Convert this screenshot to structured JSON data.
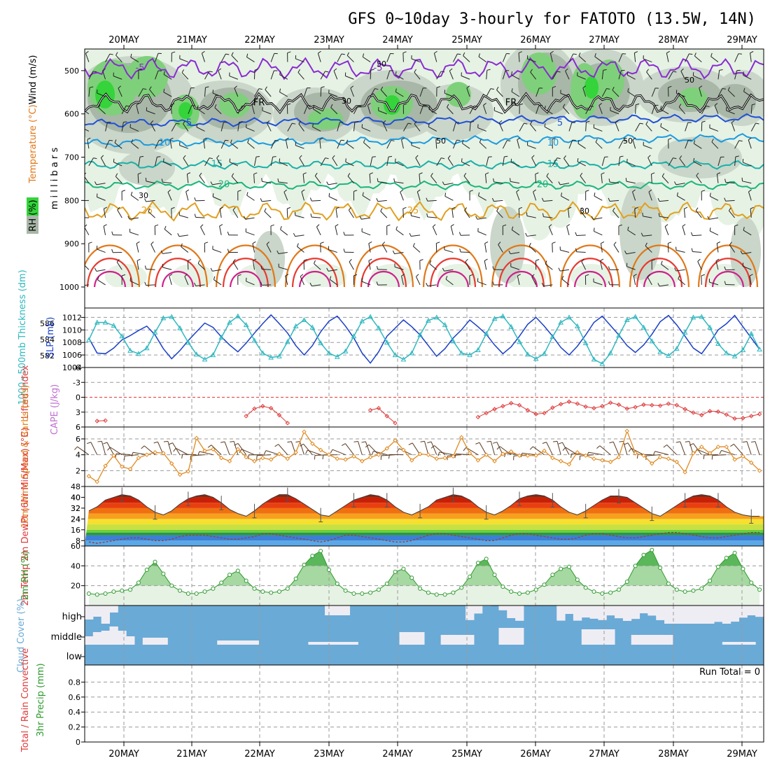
{
  "title": "GFS 0~10day 3-hourly for FATOTO (13.5W, 14N)",
  "days": [
    "20MAY",
    "21MAY",
    "22MAY",
    "23MAY",
    "24MAY",
    "25MAY",
    "26MAY",
    "27MAY",
    "28MAY",
    "29MAY"
  ],
  "run_total_label": "Run Total = 0",
  "colors": {
    "rh_light": "#e6f2e4",
    "rh_mid": "#c9d6c9",
    "rh_dark": "#a8b7a8",
    "rh_green": "#7fd07a",
    "rh_bright": "#34d43a",
    "temp_m5": "#8a2bd1",
    "temp_fr": "#000000",
    "temp_5": "#2050d8",
    "temp_10": "#1a9be0",
    "temp_15": "#1ab0a8",
    "temp_20": "#19b57c",
    "temp_25": "#e0a020",
    "temp_30": "#e07818",
    "temp_35": "#e83a30",
    "temp_40": "#d0208a",
    "slp": "#1a3fc8",
    "thickness": "#30b8c0",
    "li": "#e03a3a",
    "wind": "#e08a20",
    "rh2m": "#2e9a2e",
    "cloud_blue": "#6aaad6",
    "cloud_white": "#efedf4"
  },
  "chart_data": [
    {
      "type": "contour",
      "panel": "upper-air",
      "ylabel": "m i l l i b a r s",
      "legend_labels": [
        "RH (%)",
        "Temperature (°C)",
        "Wind (m/s)"
      ],
      "ylim": [
        1000,
        450
      ],
      "yticks": [
        500,
        600,
        700,
        800,
        900,
        1000
      ],
      "isotherm_labels": [
        "-5",
        "FR",
        "5",
        "10",
        "15",
        "20",
        "25"
      ],
      "rh_labels": [
        "30",
        "50"
      ],
      "isotherms_hpa": [
        {
          "label": "-5",
          "level": 495
        },
        {
          "label": "FR",
          "level": 575
        },
        {
          "label": "5",
          "level": 622
        },
        {
          "label": "10",
          "level": 668
        },
        {
          "label": "15",
          "level": 718
        },
        {
          "label": "20",
          "level": 765
        },
        {
          "label": "25",
          "level": 825
        }
      ]
    },
    {
      "type": "line",
      "panel": "slp-thickness",
      "y1label": "1000~500mb Thickness (dm)",
      "y2label": "SLP (mb)",
      "y1ticks": [
        582,
        584,
        586
      ],
      "y2ticks": [
        1004,
        1006,
        1008,
        1010,
        1012
      ],
      "y2lim": [
        1004,
        1013.5
      ],
      "series": [
        {
          "name": "SLP",
          "axis": "right",
          "values": [
            1008.7,
            1006.3,
            1006.2,
            1007.1,
            1008.4,
            1009.1,
            1009.9,
            1010.6,
            1009.2,
            1007.0,
            1005.4,
            1006.7,
            1008.3,
            1009.7,
            1011.1,
            1010.4,
            1008.9,
            1007.6,
            1006.5,
            1007.9,
            1009.5,
            1011.0,
            1012.4,
            1011.0,
            1009.5,
            1007.5,
            1006.0,
            1007.5,
            1009.7,
            1011.4,
            1012.2,
            1010.6,
            1008.7,
            1006.3,
            1004.7,
            1006.5,
            1009.0,
            1010.3,
            1011.6,
            1010.5,
            1009.2,
            1007.5,
            1005.8,
            1007.0,
            1008.7,
            1010.0,
            1011.6,
            1010.5,
            1009.3,
            1007.6,
            1006.2,
            1007.3,
            1009.0,
            1010.9,
            1012.0,
            1010.6,
            1009.0,
            1007.2,
            1006.0,
            1007.4,
            1009.2,
            1011.2,
            1012.2,
            1010.7,
            1009.2,
            1007.5,
            1006.4,
            1007.6,
            1009.3,
            1011.3,
            1012.3,
            1010.8,
            1009.0,
            1007.1,
            1006.2,
            1008.0,
            1010.0,
            1011.0,
            1012.3,
            1010.5,
            1008.7,
            1006.9
          ]
        },
        {
          "name": "Thickness",
          "axis": "left",
          "values": [
            1008.4,
            1011.2,
            1011.2,
            1010.7,
            1009.0,
            1006.7,
            1006.2,
            1007.1,
            1009.6,
            1011.9,
            1012.1,
            1010.3,
            1008.0,
            1006.1,
            1005.3,
            1006.0,
            1008.8,
            1011.2,
            1012.2,
            1010.8,
            1008.3,
            1006.3,
            1005.6,
            1005.8,
            1008.1,
            1010.6,
            1011.6,
            1010.4,
            1007.9,
            1006.3,
            1005.7,
            1006.6,
            1009.0,
            1011.4,
            1012.1,
            1010.3,
            1008.0,
            1006.0,
            1005.3,
            1006.3,
            1009.2,
            1011.5,
            1012.0,
            1010.8,
            1008.2,
            1006.3,
            1006.0,
            1006.8,
            1009.4,
            1011.8,
            1012.2,
            1010.5,
            1008.1,
            1006.1,
            1005.4,
            1006.2,
            1008.9,
            1011.2,
            1012.0,
            1010.6,
            1007.9,
            1005.3,
            1004.6,
            1006.3,
            1009.1,
            1011.6,
            1012.1,
            1010.4,
            1008.2,
            1006.5,
            1005.9,
            1007.0,
            1009.6,
            1012.0,
            1012.1,
            1010.4,
            1007.8,
            1006.3,
            1005.8,
            1006.8,
            1009.4,
            1006.9
          ]
        }
      ]
    },
    {
      "type": "line",
      "panel": "lifted-index",
      "y1label": "Lifted Index",
      "y2label": "CAPE (J/kg)",
      "yticks": [
        -6,
        -3,
        0,
        3,
        6
      ],
      "ylim": [
        6,
        -6
      ],
      "series": [
        {
          "name": "Lifted Index",
          "values": [
            null,
            4.8,
            4.7,
            null,
            null,
            null,
            null,
            null,
            null,
            null,
            null,
            null,
            null,
            null,
            null,
            null,
            null,
            null,
            null,
            3.8,
            2.3,
            1.8,
            2.2,
            3.6,
            5.2,
            null,
            null,
            null,
            null,
            null,
            null,
            null,
            null,
            null,
            2.6,
            2.2,
            3.8,
            5.2,
            null,
            null,
            null,
            null,
            null,
            null,
            null,
            null,
            null,
            null,
            null,
            4.8,
            null,
            null,
            null,
            null,
            null,
            null,
            null,
            null,
            null,
            null,
            null,
            null,
            null,
            null,
            null,
            null,
            null,
            null,
            null,
            null,
            null,
            null,
            null,
            null,
            null,
            null,
            null,
            null,
            null,
            null,
            null,
            null
          ]
        }
      ]
    },
    {
      "type": "line",
      "panel": "10m-wind",
      "ylabel": "10m Wind Speed & Barbs (m/s)",
      "yticks": [
        2,
        4,
        6
      ],
      "ylim": [
        0,
        7.5
      ],
      "series": [
        {
          "name": "10m Wind Speed",
          "values": [
            1.3,
            0.6,
            2.6,
            3.9,
            2.5,
            2.2,
            3.6,
            4.0,
            4.3,
            4.2,
            2.9,
            1.5,
            1.9,
            6.1,
            4.5,
            4.7,
            3.6,
            3.2,
            4.7,
            3.7,
            3.2,
            3.6,
            3.4,
            4.1,
            3.5,
            4.3,
            6.9,
            5.4,
            4.6,
            4.0,
            3.5,
            3.4,
            3.8,
            3.2,
            3.7,
            4.0,
            4.8,
            5.8,
            4.6,
            3.3,
            4.1,
            4.0,
            3.5,
            3.6,
            3.8,
            6.2,
            4.2,
            3.3,
            4.0,
            3.2,
            4.1,
            4.4,
            3.9,
            3.9,
            3.9,
            4.5,
            3.6,
            3.2,
            2.8,
            4.3,
            3.9,
            3.5,
            3.3,
            3.1,
            3.7,
            7.0,
            4.2,
            3.9,
            2.9,
            3.7,
            3.5,
            3.1,
            1.8,
            4.2,
            5.0,
            4.2,
            5.0,
            5.0,
            3.4,
            3.8,
            3.0,
            2.0
          ]
        }
      ]
    },
    {
      "type": "area",
      "panel": "2m-temp",
      "ylabel": "2m Temp 2m DewPt (6hr Min/Max) (°C)",
      "yticks": [
        8,
        16,
        24,
        32,
        40,
        48
      ],
      "ylim": [
        4,
        48
      ],
      "series": [
        {
          "name": "2m Temp",
          "values": [
            30,
            33,
            38,
            40,
            42,
            41,
            38,
            33,
            29,
            27,
            30,
            35,
            39,
            41,
            42,
            40,
            36,
            31,
            28,
            26,
            30,
            35,
            39,
            42,
            42,
            39,
            35,
            31,
            27,
            26,
            30,
            34,
            38,
            40,
            42,
            41,
            38,
            33,
            29,
            27,
            30,
            33,
            38,
            40,
            42,
            41,
            38,
            33,
            29,
            27,
            30,
            34,
            39,
            41,
            42,
            41,
            38,
            33,
            29,
            27,
            30,
            34,
            38,
            41,
            41,
            40,
            36,
            32,
            28,
            26,
            30,
            34,
            38,
            41,
            42,
            41,
            38,
            33,
            29,
            27,
            26,
            26
          ]
        },
        {
          "name": "2m DewPt",
          "values": [
            7,
            6,
            7,
            8,
            9,
            10,
            10,
            9,
            8,
            8,
            9,
            11,
            12,
            12,
            12,
            11,
            10,
            9,
            9,
            10,
            11,
            13,
            13,
            12,
            11,
            10,
            9,
            8,
            7,
            8,
            10,
            12,
            12,
            11,
            10,
            9,
            8,
            7,
            7,
            8,
            10,
            12,
            13,
            13,
            12,
            11,
            10,
            9,
            8,
            8,
            10,
            12,
            13,
            13,
            12,
            11,
            10,
            9,
            9,
            10,
            12,
            13,
            13,
            12,
            11,
            10,
            10,
            11,
            12,
            13,
            14,
            14,
            13,
            12,
            11,
            10,
            10,
            11,
            12,
            13,
            14,
            14
          ]
        }
      ]
    },
    {
      "type": "area",
      "panel": "2m-rh",
      "ylabel": "2m RH (%)",
      "yticks": [
        20,
        40,
        60
      ],
      "ylim": [
        0,
        60
      ],
      "series": [
        {
          "name": "2m RH",
          "values": [
            12,
            11,
            12,
            14,
            15,
            16,
            23,
            36,
            44,
            32,
            20,
            15,
            12,
            12,
            14,
            17,
            23,
            31,
            35,
            25,
            17,
            14,
            13,
            14,
            17,
            27,
            41,
            50,
            55,
            36,
            22,
            15,
            12,
            12,
            13,
            16,
            22,
            34,
            37,
            28,
            17,
            13,
            11,
            11,
            13,
            18,
            29,
            43,
            47,
            31,
            19,
            14,
            12,
            13,
            16,
            21,
            31,
            37,
            39,
            26,
            18,
            14,
            12,
            13,
            16,
            24,
            40,
            51,
            56,
            38,
            22,
            16,
            14,
            15,
            17,
            25,
            39,
            48,
            53,
            37,
            23,
            16
          ]
        }
      ]
    },
    {
      "type": "heatmap",
      "panel": "cloud-cover",
      "ylabel": "Cloud Cover (%)",
      "row_labels": [
        "high",
        "middle",
        "low"
      ]
    },
    {
      "type": "bar",
      "panel": "precip",
      "ylabel": "3hr Precip (mm)",
      "y2label": "Total / Rain Convective",
      "yticks": [
        0,
        0.2,
        0.4,
        0.6,
        0.8
      ],
      "ylim": [
        0,
        1
      ],
      "values": []
    }
  ]
}
